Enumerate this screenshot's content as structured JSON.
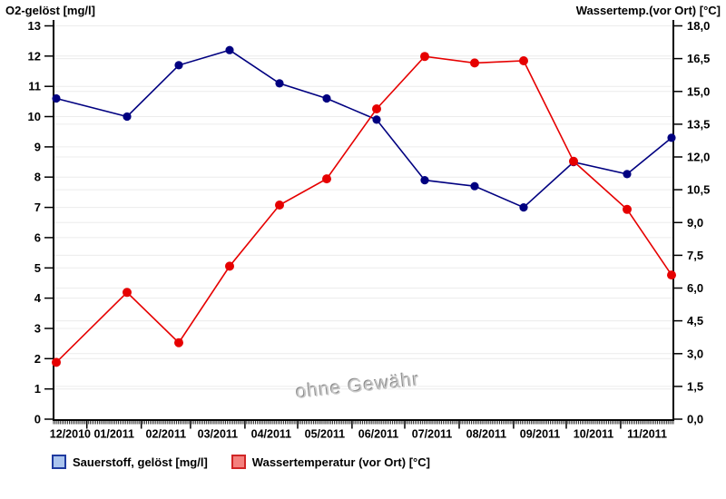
{
  "watermark": "ohne Gewähr",
  "legend": {
    "items": [
      {
        "label": "Sauerstoff, gelöst [mg/l]",
        "fill": "#aac4ee",
        "border": "#1f3aa0"
      },
      {
        "label": "Wassertemperatur (vor Ort) [°C]",
        "fill": "#f4807d",
        "border": "#d02525"
      }
    ]
  },
  "chart_data": {
    "type": "line",
    "title": "",
    "grid": true,
    "grid_color": "#ececec",
    "axis_color": "#000000",
    "left_axis": {
      "title": "O2-gelöst [mg/l]",
      "min": 0,
      "max": 13,
      "tick_step": 1,
      "tick_labels": [
        "0",
        "1",
        "2",
        "3",
        "4",
        "5",
        "6",
        "7",
        "8",
        "9",
        "10",
        "11",
        "12",
        "13"
      ]
    },
    "right_axis": {
      "title": "Wassertemp.(vor Ort) [°C]",
      "min": 0,
      "max": 18,
      "tick_step": 1.5,
      "tick_labels": [
        "0,0",
        "1,5",
        "3,0",
        "4,5",
        "6,0",
        "7,5",
        "9,0",
        "10,5",
        "12,0",
        "13,5",
        "15,0",
        "16,5",
        "18,0"
      ]
    },
    "x_axis": {
      "month_labels": [
        "12/2010",
        "01/2011",
        "02/2011",
        "03/2011",
        "04/2011",
        "05/2011",
        "06/2011",
        "07/2011",
        "08/2011",
        "09/2011",
        "10/2011",
        "11/2011"
      ],
      "month_boundaries_frac": [
        0.0538,
        0.1416,
        0.221,
        0.3088,
        0.3938,
        0.4816,
        0.5666,
        0.6544,
        0.7422,
        0.8272,
        0.915
      ],
      "day_tick_count": 353
    },
    "series": [
      {
        "name": "Sauerstoff, gelöst [mg/l]",
        "axis": "left",
        "color": "#000080",
        "marker_radius": 4.6,
        "x_frac": [
          0.0044,
          0.1186,
          0.2021,
          0.284,
          0.3646,
          0.4407,
          0.5212,
          0.5988,
          0.6794,
          0.7584,
          0.839,
          0.9253,
          0.9971
        ],
        "values": [
          10.6,
          10.0,
          11.7,
          12.2,
          11.1,
          10.6,
          9.9,
          7.9,
          7.7,
          7.0,
          8.5,
          8.1,
          9.3
        ]
      },
      {
        "name": "Wassertemperatur (vor Ort) [°C]",
        "axis": "right",
        "color": "#e60000",
        "marker_radius": 5.0,
        "x_frac": [
          0.0044,
          0.1186,
          0.2021,
          0.284,
          0.3646,
          0.4407,
          0.5212,
          0.5988,
          0.6794,
          0.7584,
          0.839,
          0.9253,
          0.9971
        ],
        "values": [
          2.6,
          5.8,
          3.5,
          7.0,
          9.8,
          11.0,
          14.2,
          16.6,
          16.3,
          16.4,
          11.8,
          9.6,
          6.6
        ]
      }
    ]
  }
}
